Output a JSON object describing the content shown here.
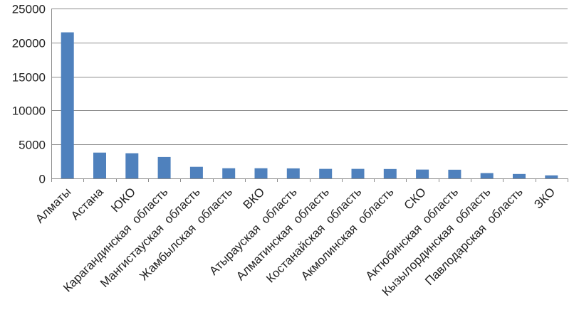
{
  "chart_data": {
    "type": "bar",
    "title": "",
    "xlabel": "",
    "ylabel": "",
    "ylim": [
      0,
      25000
    ],
    "yticks": [
      0,
      5000,
      10000,
      15000,
      20000,
      25000
    ],
    "grid": true,
    "legend": "none",
    "bar_color": "#4f81bd",
    "categories": [
      "Алматы",
      "Астана",
      "ЮКО",
      "Карагандинская  область",
      "Мангистауская  область",
      "Жамбылская  область",
      "ВКО",
      "Атырауская  область",
      "Алматинская  область",
      "Костанайская  область",
      "Акмолинская  область",
      "СКО",
      "Актюбинская  область",
      "Кызылординская  область",
      "Павлодарская  область",
      "ЗКО"
    ],
    "values": [
      21500,
      3800,
      3700,
      3150,
      1700,
      1500,
      1500,
      1480,
      1400,
      1400,
      1380,
      1300,
      1280,
      780,
      650,
      450
    ]
  }
}
